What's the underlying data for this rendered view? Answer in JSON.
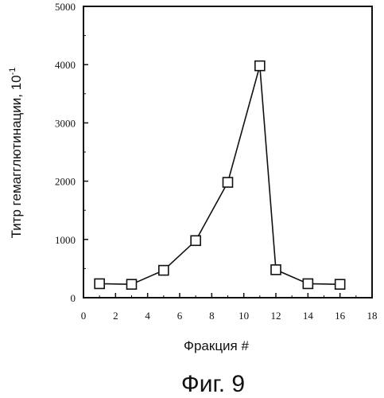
{
  "chart_data": {
    "type": "line",
    "xlabel": "Фракция #",
    "ylabel_main": "Титр гемагглютинации, 10",
    "ylabel_sup": "-1",
    "caption": "Фиг. 9",
    "xlim": [
      0,
      18
    ],
    "ylim": [
      0,
      5000
    ],
    "x_ticks": [
      0,
      2,
      4,
      6,
      8,
      10,
      12,
      14,
      16,
      18
    ],
    "y_ticks": [
      0,
      1000,
      2000,
      3000,
      4000,
      5000
    ],
    "x_tick_labels": [
      "0",
      "2",
      "4",
      "6",
      "8",
      "10",
      "12",
      "14",
      "16",
      "18"
    ],
    "y_tick_labels": [
      "0",
      "1000",
      "2000",
      "3000",
      "4000",
      "5000"
    ],
    "grid": false,
    "marker": "open-square",
    "series": [
      {
        "x": [
          1,
          3,
          5,
          7,
          9,
          11,
          12,
          14,
          16
        ],
        "values": [
          240,
          230,
          470,
          980,
          1980,
          3980,
          480,
          240,
          230
        ]
      }
    ]
  }
}
